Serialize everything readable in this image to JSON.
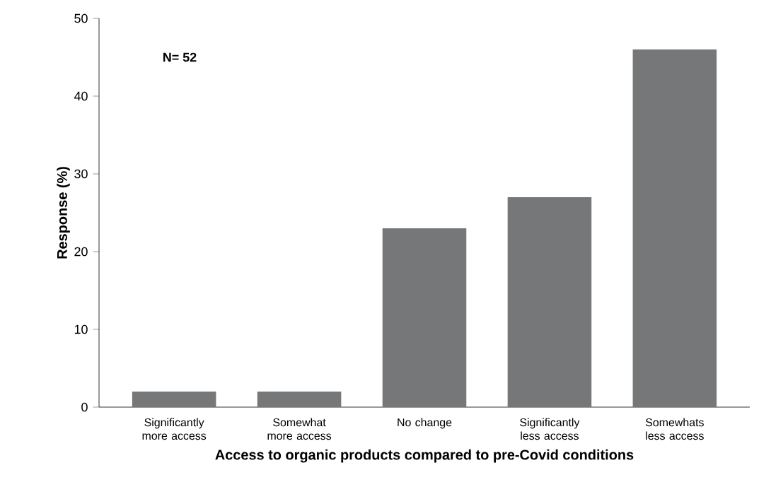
{
  "chart_data": {
    "type": "bar",
    "xlabel": "Access to organic products compared to pre-Covid conditions",
    "ylabel": "Response (%)",
    "categories": [
      "Significantly more access",
      "Somewhat more access",
      "No change",
      "Significantly less access",
      "Somewhats less access"
    ],
    "values": [
      2,
      2,
      23,
      27,
      46
    ],
    "color": "#767778",
    "ylim": [
      0,
      50
    ],
    "yticks": [
      0,
      10,
      20,
      30,
      40,
      50
    ],
    "annotations": [
      "N= 52"
    ]
  }
}
